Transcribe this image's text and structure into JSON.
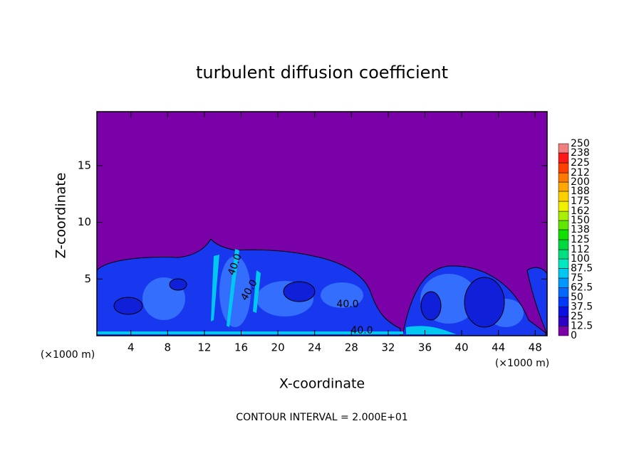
{
  "chart_data": {
    "type": "filled-contour",
    "title": "turbulent diffusion coefficient",
    "x_label": "X-coordinate",
    "y_label": "Z-coordinate",
    "x_unit_left": "(×1000 m)",
    "x_unit_right": "(×1000 m)",
    "footer": "CONTOUR INTERVAL = 2.000E+01",
    "xlim": [
      0.3,
      49.3
    ],
    "ylim": [
      0,
      19.75
    ],
    "xticks": [
      4,
      8,
      12,
      16,
      20,
      24,
      28,
      32,
      36,
      40,
      44,
      48
    ],
    "yticks": [
      5,
      10,
      15
    ],
    "contour_labels": [
      "40.0",
      "40.0",
      "40.0",
      "40.0"
    ],
    "colorbar": {
      "levels": [
        0,
        12.5,
        25,
        37.5,
        50,
        62.5,
        75,
        87.5,
        100,
        112,
        125,
        138,
        150,
        162,
        175,
        188,
        200,
        212,
        225,
        238,
        250
      ],
      "colors": [
        "#7a00a8",
        "#2c00c4",
        "#0a10e0",
        "#0038ff",
        "#0068ff",
        "#0098ff",
        "#00c8f0",
        "#00e8c0",
        "#00e080",
        "#00d840",
        "#10e000",
        "#60e800",
        "#a8f000",
        "#f0f000",
        "#ffd000",
        "#ffa800",
        "#ff7800",
        "#ff4000",
        "#ff1818",
        "#f08080"
      ]
    }
  }
}
